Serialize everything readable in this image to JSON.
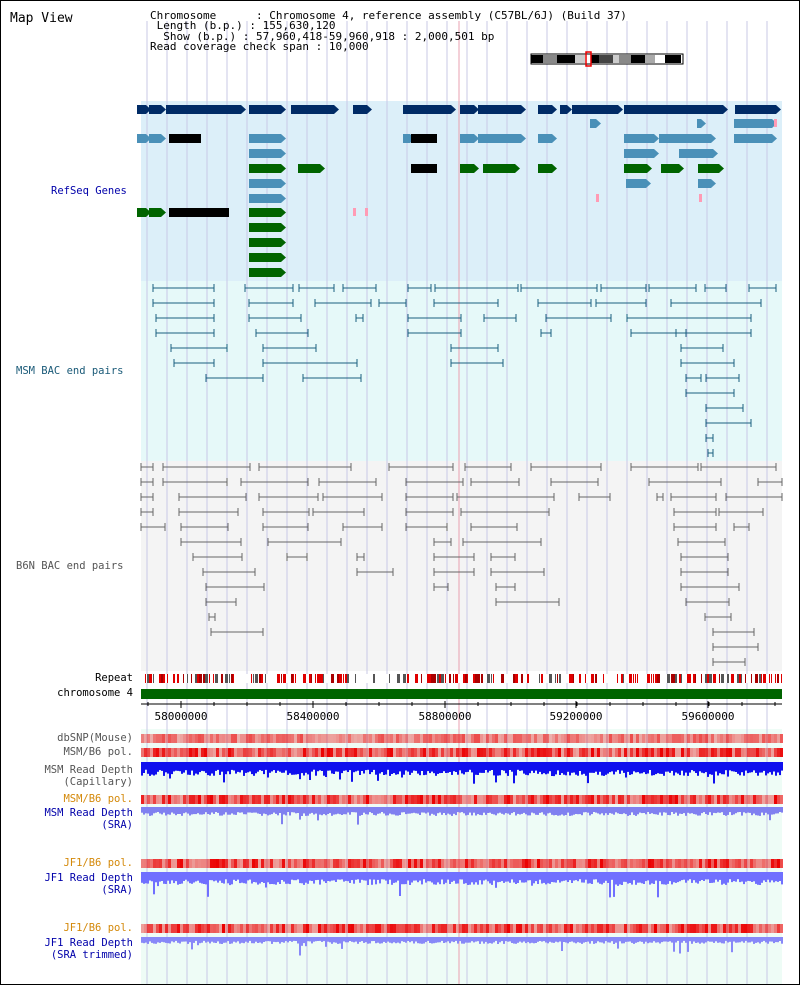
{
  "title": "Map View",
  "info": {
    "chromosome_label": "Chromosome",
    "chromosome_value": "Chromosome 4, reference assembly (C57BL/6J) (Build 37)",
    "length_label": "Length (b.p.)",
    "length_value": "155,630,120",
    "show_label": "Show (b.p.)",
    "show_value": "57,960,418-59,960,918 : 2,000,501 bp",
    "span_label": "Read coverage check span",
    "span_value": "10,000"
  },
  "tracks": {
    "refseq": "RefSeq Genes",
    "msm_bac": "MSM BAC end pairs",
    "b6n_bac": "B6N BAC end pairs",
    "repeat": "Repeat",
    "chromosome": "chromosome 4",
    "dbsnp": "dbSNP(Mouse)",
    "msm_b6_pol": "MSM/B6 pol.",
    "msm_read_depth_cap_1": "MSM Read Depth",
    "msm_read_depth_cap_2": "(Capillary)",
    "msm_b6_pol_2": "MSM/B6 pol.",
    "msm_read_depth_sra_1": "MSM Read Depth",
    "msm_read_depth_sra_2": "(SRA)",
    "jf1_b6_pol": "JF1/B6 pol.",
    "jf1_read_depth_sra_1": "JF1 Read Depth",
    "jf1_read_depth_sra_2": "(SRA)",
    "jf1_b6_pol_2": "JF1/B6 pol.",
    "jf1_read_depth_trim_1": "JF1 Read Depth",
    "jf1_read_depth_trim_2": "(SRA trimmed)"
  },
  "axis": {
    "ticks": [
      "58000000",
      "58400000",
      "58800000",
      "59200000",
      "59600000"
    ]
  },
  "colors": {
    "refseq_dark": "#002b66",
    "refseq_light": "#4a90b8",
    "refseq_green": "#006400",
    "msm_bac": "#1a6080",
    "b6n_bac": "#666666",
    "repeat_red": "#e00000",
    "chromosome_green": "#006400",
    "snp_red": "#ff4040",
    "depth_blue": "#1010ee",
    "depth_light": "#7070ff"
  }
}
